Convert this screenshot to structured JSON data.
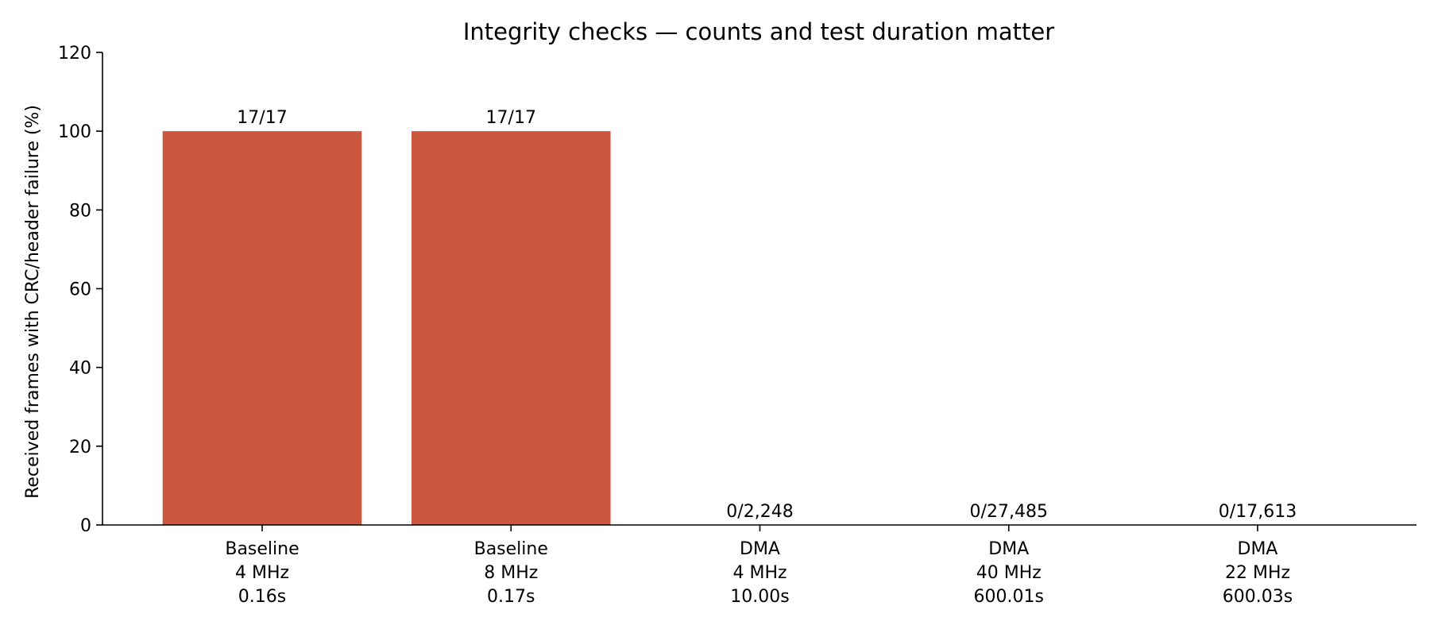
{
  "chart_data": {
    "type": "bar",
    "title": "Integrity checks — counts and test duration matter",
    "xlabel": "",
    "ylabel": "Received frames with CRC/header failure (%)",
    "ylim": [
      0,
      120
    ],
    "yticks": [
      0,
      20,
      40,
      60,
      80,
      100,
      120
    ],
    "grid": false,
    "legend": "none",
    "categories": [
      [
        "Baseline",
        "4 MHz",
        "0.16s"
      ],
      [
        "Baseline",
        "8 MHz",
        "0.17s"
      ],
      [
        "DMA",
        "4 MHz",
        "10.00s"
      ],
      [
        "DMA",
        "40 MHz",
        "600.01s"
      ],
      [
        "DMA",
        "22 MHz",
        "600.03s"
      ]
    ],
    "values": [
      100,
      100,
      0,
      0,
      0
    ],
    "data_labels": [
      "17/17",
      "17/17",
      "0/2,248",
      "0/27,485",
      "0/17,613"
    ],
    "colors": {
      "bar": "#cb573f",
      "axis": "#000000"
    }
  }
}
